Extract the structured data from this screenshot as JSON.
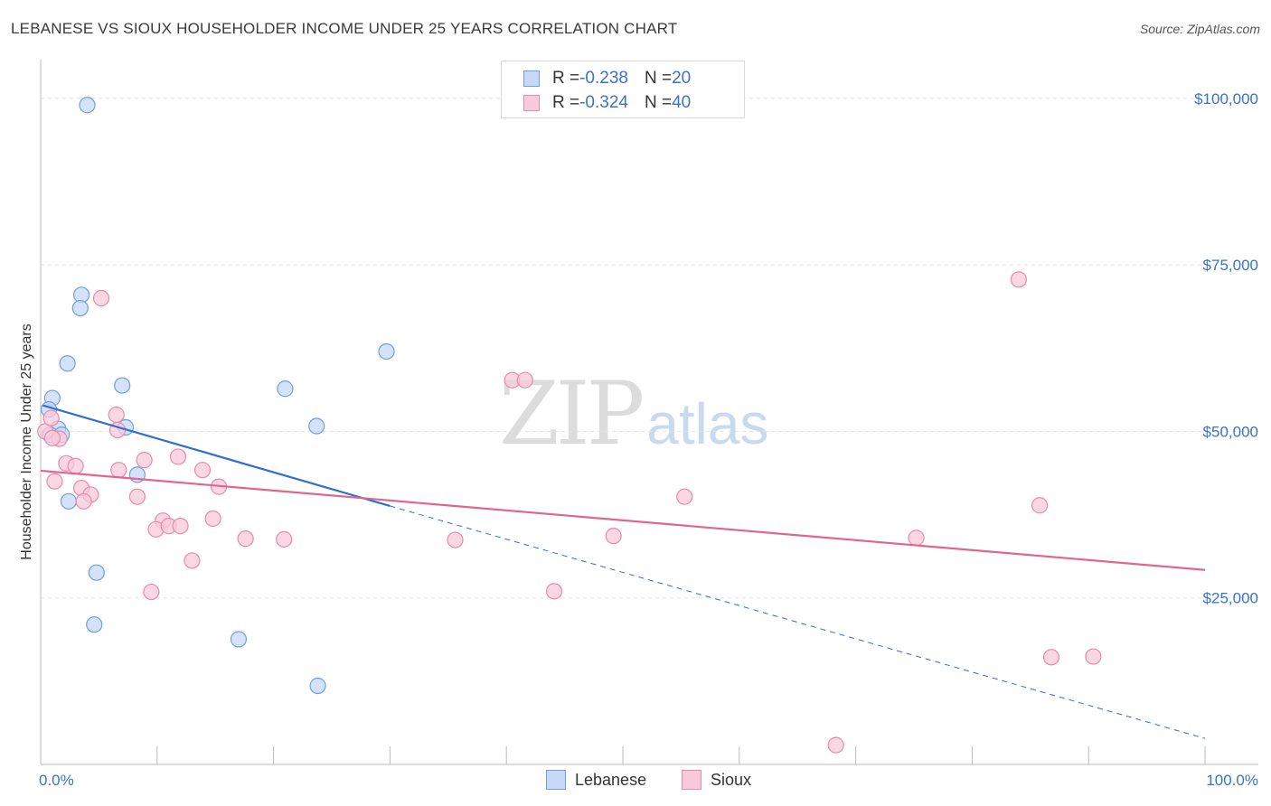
{
  "title": "LEBANESE VS SIOUX HOUSEHOLDER INCOME UNDER 25 YEARS CORRELATION CHART",
  "source": "Source: ZipAtlas.com",
  "watermark": {
    "zip": "ZIP",
    "atlas": "atlas"
  },
  "legend_top": [
    {
      "r_label": "R = ",
      "r_value": "-0.238",
      "n_label": "N = ",
      "n_value": "20",
      "fill": "#c6d9f7",
      "border": "#6f9fe0"
    },
    {
      "r_label": "R = ",
      "r_value": "-0.324",
      "n_label": "N = ",
      "n_value": "40",
      "fill": "#f9cad9",
      "border": "#e88aaa"
    }
  ],
  "legend_bottom": [
    {
      "label": "Lebanese",
      "fill": "#c6d9f7",
      "border": "#6f9fe0"
    },
    {
      "label": "Sioux",
      "fill": "#f9cad9",
      "border": "#e88aaa"
    }
  ],
  "chart_data": {
    "type": "scatter",
    "title": "LEBANESE VS SIOUX HOUSEHOLDER INCOME UNDER 25 YEARS CORRELATION CHART",
    "xlabel": "",
    "ylabel": "Householder Income Under 25 years",
    "xlim": [
      0,
      100
    ],
    "ylim": [
      0,
      105000
    ],
    "x_tick_labels": [
      "0.0%",
      "100.0%"
    ],
    "y_ticks": [
      25000,
      50000,
      75000,
      100000
    ],
    "y_tick_labels": [
      "$25,000",
      "$50,000",
      "$75,000",
      "$100,000"
    ],
    "grid": true,
    "legend_position": "top-center",
    "series": [
      {
        "name": "Lebanese",
        "color": "#6f9fe0",
        "fill": "#c6d9f7",
        "trend_color": "#2f6fd1",
        "trend": {
          "x0": 0.2,
          "y0": 53900,
          "x1": 30,
          "y1": 38800,
          "dashed_to_x": 100,
          "dashed_to_y": 3900
        },
        "points": [
          [
            4.0,
            99000
          ],
          [
            3.5,
            70500
          ],
          [
            3.4,
            68500
          ],
          [
            2.3,
            60200
          ],
          [
            1.0,
            55000
          ],
          [
            0.7,
            53300
          ],
          [
            7.0,
            56900
          ],
          [
            1.5,
            50400
          ],
          [
            0.8,
            49500
          ],
          [
            1.8,
            49500
          ],
          [
            7.3,
            50600
          ],
          [
            8.3,
            43500
          ],
          [
            2.4,
            39500
          ],
          [
            4.8,
            28800
          ],
          [
            4.6,
            21000
          ],
          [
            17.0,
            18800
          ],
          [
            23.8,
            11800
          ],
          [
            21.0,
            56400
          ],
          [
            23.7,
            50800
          ],
          [
            29.7,
            62000
          ]
        ]
      },
      {
        "name": "Sioux",
        "color": "#e88aaa",
        "fill": "#f9cad9",
        "trend_color": "#e0668f",
        "trend": {
          "x0": 0,
          "y0": 44100,
          "x1": 100,
          "y1": 29200
        },
        "points": [
          [
            0.4,
            50000
          ],
          [
            1.6,
            48900
          ],
          [
            0.9,
            52000
          ],
          [
            6.6,
            50200
          ],
          [
            6.5,
            52500
          ],
          [
            5.2,
            70000
          ],
          [
            2.2,
            45200
          ],
          [
            1.2,
            42500
          ],
          [
            3.0,
            44800
          ],
          [
            3.5,
            41500
          ],
          [
            4.3,
            40500
          ],
          [
            3.7,
            39500
          ],
          [
            6.7,
            44200
          ],
          [
            8.3,
            40200
          ],
          [
            8.9,
            45700
          ],
          [
            11.8,
            46200
          ],
          [
            13.9,
            44200
          ],
          [
            15.3,
            41700
          ],
          [
            10.5,
            36600
          ],
          [
            9.9,
            35300
          ],
          [
            11.0,
            35800
          ],
          [
            12.0,
            35800
          ],
          [
            14.8,
            36900
          ],
          [
            17.6,
            33900
          ],
          [
            20.9,
            33800
          ],
          [
            13.0,
            30600
          ],
          [
            9.5,
            25900
          ],
          [
            35.6,
            33700
          ],
          [
            40.5,
            57700
          ],
          [
            41.6,
            57700
          ],
          [
            44.1,
            26000
          ],
          [
            49.2,
            34300
          ],
          [
            55.3,
            40200
          ],
          [
            75.2,
            34000
          ],
          [
            84.0,
            72800
          ],
          [
            85.8,
            38900
          ],
          [
            86.8,
            16100
          ],
          [
            90.4,
            16200
          ],
          [
            68.3,
            2900
          ],
          [
            1.0,
            49000
          ]
        ]
      }
    ]
  }
}
